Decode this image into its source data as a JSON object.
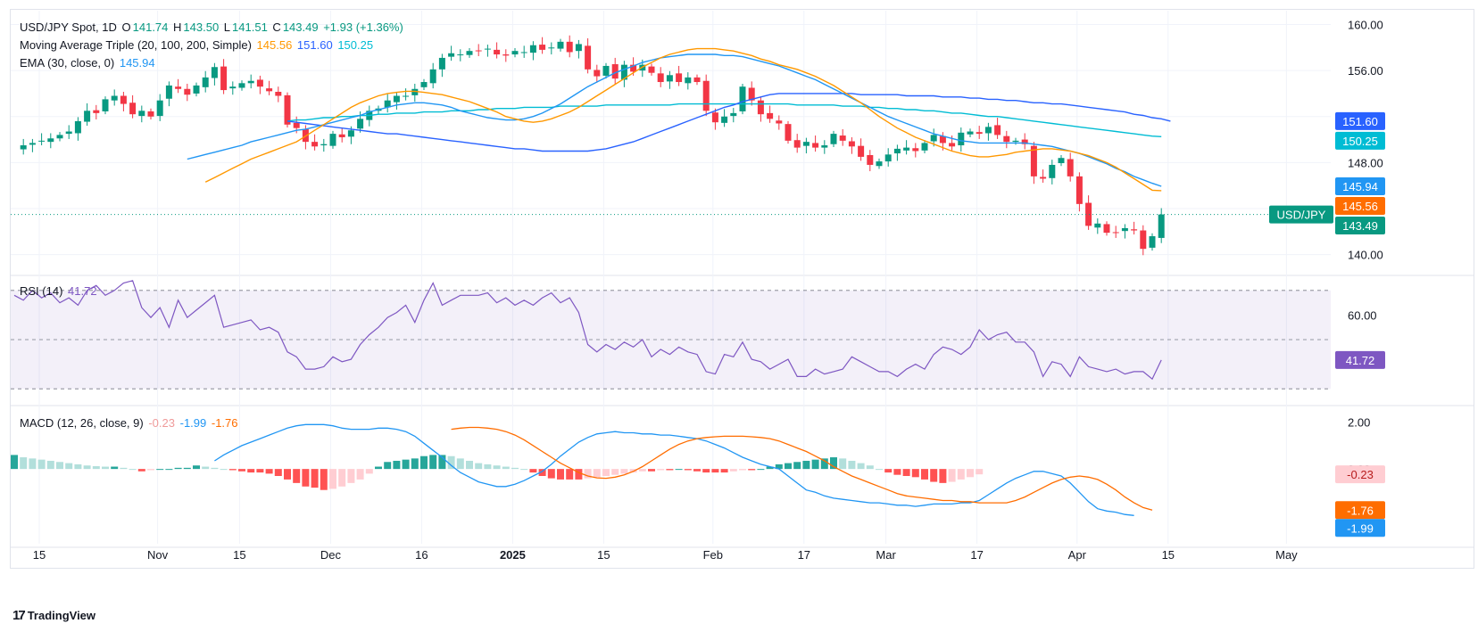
{
  "header": {
    "symbol": "USD/JPY Spot, 1D",
    "o_label": "O",
    "o": "141.74",
    "h_label": "H",
    "h": "143.50",
    "l_label": "L",
    "l": "141.51",
    "c_label": "C",
    "c": "143.49",
    "change": "+1.93 (+1.36%)"
  },
  "ma_legend": {
    "name": "Moving Average Triple (20, 100, 200, Simple)",
    "v20": "145.56",
    "v100": "151.60",
    "v200": "150.25"
  },
  "ema_legend": {
    "name": "EMA (30, close, 0)",
    "value": "145.94"
  },
  "rsi_legend": {
    "name": "RSI (14)",
    "value": "41.72"
  },
  "macd_legend": {
    "name": "MACD (12, 26, close, 9)",
    "hist": "-0.23",
    "macd": "-1.99",
    "signal": "-1.76"
  },
  "price_badges": [
    {
      "text": "151.60",
      "color": "#2962ff"
    },
    {
      "text": "150.25",
      "color": "#00bcd4"
    },
    {
      "text": "145.94",
      "color": "#2196f3"
    },
    {
      "text": "145.56",
      "color": "#ff6d00"
    },
    {
      "text": "143.49",
      "color": "#089981"
    }
  ],
  "symbol_badge": "USD/JPY",
  "rsi_badge": "41.72",
  "macd_badges": [
    {
      "text": "-0.23",
      "color": "#ffcdd2",
      "fg": "#b71c1c"
    },
    {
      "text": "-1.76",
      "color": "#ff6d00",
      "fg": "#ffffff"
    },
    {
      "text": "-1.99",
      "color": "#2196f3",
      "fg": "#ffffff"
    }
  ],
  "footer": {
    "brand": "TradingView"
  },
  "colors": {
    "up": "#089981",
    "down": "#f23645",
    "ma20": "#ff9800",
    "ma100": "#2962ff",
    "ma200": "#00bcd4",
    "ema": "#2196f3",
    "rsi": "#7e57c2",
    "macd": "#2196f3",
    "signal": "#ff6d00"
  },
  "chart_data": {
    "type": "candlestick",
    "price_axis": {
      "ticks": [
        "160.00",
        "156.00",
        "152.00",
        "148.00",
        "144.00",
        "140.00"
      ],
      "range": [
        138.5,
        161.2
      ]
    },
    "rsi_axis": {
      "ticks": [
        "60.00"
      ],
      "bands": [
        30,
        50,
        70
      ],
      "range": [
        25,
        75
      ]
    },
    "macd_axis": {
      "ticks": [
        "2.00",
        "0.00"
      ],
      "range": [
        -3.2,
        2.6
      ]
    },
    "x_labels": [
      {
        "text": "15",
        "i": 0
      },
      {
        "text": "Nov",
        "i": 13
      },
      {
        "text": "15",
        "i": 22
      },
      {
        "text": "Dec",
        "i": 32
      },
      {
        "text": "16",
        "i": 42
      },
      {
        "text": "2025",
        "i": 52,
        "bold": true
      },
      {
        "text": "15",
        "i": 62
      },
      {
        "text": "Feb",
        "i": 74
      },
      {
        "text": "17",
        "i": 84
      },
      {
        "text": "Mar",
        "i": 93
      },
      {
        "text": "17",
        "i": 103
      },
      {
        "text": "Apr",
        "i": 114
      },
      {
        "text": "15",
        "i": 124
      },
      {
        "text": "May",
        "i": 137
      }
    ],
    "closes": [
      149.2,
      149.5,
      149.7,
      149.9,
      150.1,
      150.4,
      150.7,
      151.6,
      152.5,
      152.3,
      153.5,
      153.8,
      153.1,
      152.2,
      152.5,
      152.0,
      153.4,
      154.7,
      154.4,
      153.9,
      154.7,
      155.4,
      156.3,
      154.3,
      154.6,
      154.9,
      155.1,
      154.6,
      154.2,
      153.8,
      151.3,
      151.0,
      149.8,
      149.4,
      149.6,
      150.5,
      150.2,
      150.8,
      151.8,
      152.5,
      152.7,
      153.4,
      153.8,
      153.8,
      154.4,
      155.0,
      156.1,
      157.1,
      157.5,
      157.4,
      157.7,
      157.7,
      157.9,
      157.4,
      157.3,
      157.7,
      157.6,
      158.2,
      157.8,
      158.0,
      158.5,
      157.6,
      158.3,
      156.1,
      155.5,
      156.4,
      155.3,
      156.5,
      155.9,
      156.5,
      155.8,
      155.0,
      155.6,
      155.0,
      155.4,
      155.0,
      152.5,
      151.5,
      152.0,
      152.3,
      154.6,
      153.4,
      152.2,
      151.8,
      151.4,
      149.9,
      149.3,
      149.8,
      149.3,
      149.5,
      150.5,
      149.9,
      149.4,
      148.5,
      147.8,
      148.1,
      148.7,
      149.2,
      149.3,
      149.0,
      149.7,
      150.4,
      149.7,
      149.4,
      150.6,
      150.7,
      150.5,
      151.1,
      150.4,
      149.8,
      149.9,
      149.6,
      146.8,
      146.6,
      147.8,
      148.4,
      146.8,
      144.4,
      142.5,
      142.7,
      141.9,
      141.9,
      142.3,
      142.1,
      140.5,
      141.6,
      143.49
    ],
    "ma20": [
      146.3,
      146.7,
      147.1,
      147.5,
      147.9,
      148.3,
      148.6,
      148.9,
      149.2,
      149.5,
      149.8,
      150.3,
      150.8,
      151.3,
      151.8,
      152.3,
      152.8,
      153.2,
      153.5,
      153.8,
      154.0,
      154.1,
      154.2,
      154.2,
      154.1,
      154.0,
      153.9,
      153.7,
      153.5,
      153.3,
      153.0,
      152.7,
      152.4,
      152.0,
      151.8,
      151.6,
      151.5,
      151.6,
      151.8,
      152.1,
      152.4,
      152.8,
      153.3,
      153.8,
      154.3,
      154.8,
      155.3,
      155.8,
      156.3,
      156.7,
      157.1,
      157.4,
      157.6,
      157.8,
      157.9,
      157.9,
      157.9,
      157.8,
      157.7,
      157.5,
      157.3,
      157.0,
      156.8,
      156.5,
      156.3,
      156.1,
      155.8,
      155.5,
      155.1,
      154.7,
      154.2,
      153.7,
      153.2,
      152.6,
      152.0,
      151.5,
      151.0,
      150.6,
      150.2,
      149.9,
      149.6,
      149.3,
      149.0,
      148.8,
      148.6,
      148.5,
      148.5,
      148.6,
      148.7,
      148.9,
      149.0,
      149.1,
      149.2,
      149.2,
      149.1,
      149.0,
      148.8,
      148.6,
      148.3,
      148.0,
      147.6,
      147.1,
      146.6,
      146.1,
      145.6,
      145.56
    ],
    "ma20_start": 21,
    "ema30": [
      148.3,
      148.5,
      148.7,
      148.9,
      149.1,
      149.3,
      149.5,
      149.8,
      150.0,
      150.2,
      150.4,
      150.6,
      150.8,
      150.9,
      151.1,
      151.3,
      151.5,
      151.7,
      151.9,
      152.1,
      152.4,
      152.6,
      152.8,
      153.0,
      153.1,
      153.2,
      153.2,
      153.1,
      153.0,
      152.8,
      152.5,
      152.3,
      152.1,
      151.9,
      151.8,
      151.7,
      151.7,
      151.8,
      152.0,
      152.3,
      152.7,
      153.1,
      153.6,
      154.1,
      154.6,
      155.0,
      155.4,
      155.8,
      156.1,
      156.4,
      156.7,
      156.9,
      157.1,
      157.2,
      157.3,
      157.4,
      157.4,
      157.4,
      157.4,
      157.3,
      157.3,
      157.2,
      157.0,
      156.8,
      156.6,
      156.4,
      156.1,
      155.8,
      155.5,
      155.2,
      154.8,
      154.4,
      154.0,
      153.6,
      153.2,
      152.8,
      152.4,
      152.0,
      151.7,
      151.4,
      151.1,
      150.8,
      150.5,
      150.3,
      150.1,
      149.9,
      149.8,
      149.7,
      149.7,
      149.7,
      149.7,
      149.7,
      149.7,
      149.6,
      149.5,
      149.4,
      149.2,
      149.0,
      148.8,
      148.5,
      148.2,
      147.9,
      147.5,
      147.2,
      146.8,
      146.5,
      146.2,
      145.94
    ],
    "ema30_start": 19,
    "ma100": [
      151.6,
      151.5,
      151.4,
      151.3,
      151.2,
      151.1,
      151.0,
      150.9,
      150.8,
      150.7,
      150.6,
      150.5,
      150.5,
      150.4,
      150.3,
      150.2,
      150.1,
      150.0,
      149.9,
      149.8,
      149.7,
      149.6,
      149.5,
      149.4,
      149.3,
      149.2,
      149.2,
      149.1,
      149.0,
      149.0,
      149.0,
      149.0,
      149.0,
      149.0,
      149.1,
      149.2,
      149.4,
      149.6,
      149.8,
      150.1,
      150.4,
      150.7,
      151.0,
      151.3,
      151.6,
      151.9,
      152.2,
      152.5,
      152.8,
      153.0,
      153.3,
      153.5,
      153.7,
      153.9,
      154.0,
      154.0,
      154.0,
      154.0,
      154.0,
      154.0,
      154.0,
      154.0,
      154.0,
      153.9,
      153.9,
      153.9,
      153.9,
      153.9,
      153.8,
      153.8,
      153.8,
      153.8,
      153.7,
      153.7,
      153.7,
      153.6,
      153.6,
      153.5,
      153.5,
      153.4,
      153.4,
      153.3,
      153.2,
      153.2,
      153.1,
      153.1,
      153.0,
      152.9,
      152.8,
      152.7,
      152.6,
      152.5,
      152.4,
      152.2,
      152.1,
      151.9,
      151.8,
      151.6
    ],
    "ma100_start": 30,
    "ma200": [
      151.6,
      151.7,
      151.7,
      151.8,
      151.9,
      151.9,
      152.0,
      152.0,
      152.1,
      152.1,
      152.2,
      152.2,
      152.3,
      152.3,
      152.3,
      152.4,
      152.4,
      152.4,
      152.5,
      152.5,
      152.5,
      152.6,
      152.6,
      152.7,
      152.7,
      152.7,
      152.8,
      152.8,
      152.8,
      152.8,
      152.9,
      152.9,
      152.9,
      152.9,
      152.9,
      153.0,
      153.0,
      153.0,
      153.0,
      153.0,
      153.0,
      153.0,
      153.0,
      153.1,
      153.1,
      153.1,
      153.1,
      153.1,
      153.1,
      153.1,
      153.1,
      153.1,
      153.1,
      153.1,
      153.1,
      153.1,
      153.0,
      153.0,
      153.0,
      153.0,
      153.0,
      152.9,
      152.9,
      152.9,
      152.8,
      152.8,
      152.7,
      152.7,
      152.6,
      152.6,
      152.5,
      152.5,
      152.4,
      152.3,
      152.3,
      152.2,
      152.1,
      152.0,
      152.0,
      151.9,
      151.8,
      151.7,
      151.6,
      151.5,
      151.4,
      151.3,
      151.2,
      151.1,
      151.0,
      150.9,
      150.8,
      150.7,
      150.6,
      150.5,
      150.4,
      150.3,
      150.25
    ],
    "ma200_start": 30,
    "rsi": [
      68,
      66,
      70,
      67,
      69,
      65,
      67,
      64,
      70,
      72,
      68,
      70,
      73,
      74,
      63,
      59,
      63,
      55,
      66,
      59,
      62,
      65,
      68,
      55,
      56,
      57,
      58,
      54,
      55,
      53,
      45,
      43,
      38,
      38,
      39,
      43,
      41,
      42,
      48,
      52,
      55,
      59,
      61,
      64,
      57,
      66,
      73,
      64,
      66,
      68,
      68,
      68,
      69,
      65,
      67,
      64,
      66,
      64,
      67,
      69,
      65,
      67,
      61,
      48,
      45,
      48,
      46,
      49,
      47,
      50,
      43,
      46,
      44,
      47,
      45,
      44,
      37,
      36,
      44,
      43,
      49,
      42,
      41,
      38,
      40,
      42,
      35,
      35,
      38,
      36,
      37,
      38,
      43,
      41,
      39,
      37,
      37,
      35,
      38,
      40,
      38,
      44,
      47,
      46,
      44,
      47,
      54,
      50,
      52,
      53,
      49,
      49,
      45,
      35,
      41,
      40,
      35,
      43,
      39,
      38,
      37,
      38,
      36,
      37,
      37,
      34,
      41.72
    ],
    "macd": [
      0.35,
      0.6,
      0.8,
      1.0,
      1.15,
      1.3,
      1.45,
      1.6,
      1.75,
      1.85,
      1.9,
      1.9,
      1.9,
      1.85,
      1.75,
      1.7,
      1.7,
      1.7,
      1.75,
      1.75,
      1.7,
      1.6,
      1.4,
      1.1,
      0.8,
      0.5,
      0.15,
      -0.15,
      -0.35,
      -0.55,
      -0.65,
      -0.75,
      -0.75,
      -0.65,
      -0.5,
      -0.3,
      -0.1,
      0.2,
      0.55,
      0.85,
      1.15,
      1.35,
      1.5,
      1.55,
      1.6,
      1.55,
      1.55,
      1.5,
      1.5,
      1.45,
      1.45,
      1.4,
      1.35,
      1.3,
      1.2,
      1.05,
      0.9,
      0.7,
      0.5,
      0.35,
      0.2,
      0.1,
      0.0,
      -0.3,
      -0.6,
      -0.9,
      -1.0,
      -1.15,
      -1.25,
      -1.3,
      -1.35,
      -1.4,
      -1.45,
      -1.45,
      -1.5,
      -1.55,
      -1.55,
      -1.6,
      -1.55,
      -1.5,
      -1.5,
      -1.5,
      -1.45,
      -1.45,
      -1.35,
      -1.1,
      -0.85,
      -0.6,
      -0.4,
      -0.25,
      -0.1,
      -0.1,
      -0.2,
      -0.3,
      -0.6,
      -1.0,
      -1.4,
      -1.7,
      -1.8,
      -1.85,
      -1.95,
      -1.99
    ],
    "macd_start": 22,
    "signal": [
      1.7,
      1.75,
      1.78,
      1.78,
      1.75,
      1.7,
      1.6,
      1.45,
      1.25,
      1.0,
      0.75,
      0.5,
      0.25,
      0.05,
      -0.15,
      -0.3,
      -0.38,
      -0.4,
      -0.35,
      -0.25,
      -0.1,
      0.1,
      0.35,
      0.6,
      0.85,
      1.05,
      1.2,
      1.3,
      1.35,
      1.38,
      1.4,
      1.4,
      1.4,
      1.38,
      1.35,
      1.3,
      1.2,
      1.05,
      0.9,
      0.75,
      0.55,
      0.35,
      0.1,
      -0.1,
      -0.3,
      -0.45,
      -0.6,
      -0.75,
      -0.9,
      -1.05,
      -1.15,
      -1.2,
      -1.25,
      -1.3,
      -1.35,
      -1.35,
      -1.4,
      -1.4,
      -1.45,
      -1.45,
      -1.45,
      -1.45,
      -1.35,
      -1.2,
      -1.0,
      -0.8,
      -0.6,
      -0.45,
      -0.35,
      -0.3,
      -0.35,
      -0.45,
      -0.65,
      -0.9,
      -1.2,
      -1.45,
      -1.65,
      -1.76
    ],
    "signal_start": 48,
    "hist": [
      0.6,
      0.5,
      0.45,
      0.4,
      0.35,
      0.3,
      0.25,
      0.2,
      0.15,
      0.12,
      0.1,
      0.1,
      0.05,
      0.0,
      -0.1,
      -0.05,
      0.0,
      0.0,
      0.05,
      0.05,
      0.15,
      0.1,
      0.05,
      0.0,
      -0.05,
      -0.1,
      -0.15,
      -0.15,
      -0.2,
      -0.3,
      -0.45,
      -0.6,
      -0.75,
      -0.8,
      -0.9,
      -0.85,
      -0.75,
      -0.6,
      -0.45,
      -0.2,
      0.1,
      0.3,
      0.35,
      0.4,
      0.45,
      0.55,
      0.6,
      0.6,
      0.55,
      0.45,
      0.35,
      0.25,
      0.2,
      0.15,
      0.1,
      0.05,
      0.0,
      -0.15,
      -0.3,
      -0.4,
      -0.45,
      -0.45,
      -0.45,
      -0.4,
      -0.35,
      -0.3,
      -0.25,
      -0.2,
      -0.15,
      -0.1,
      -0.1,
      -0.05,
      -0.05,
      0.0,
      -0.05,
      -0.1,
      -0.15,
      -0.15,
      -0.15,
      -0.1,
      -0.05,
      -0.05,
      0.0,
      0.1,
      0.2,
      0.25,
      0.3,
      0.35,
      0.4,
      0.45,
      0.5,
      0.45,
      0.35,
      0.25,
      0.15,
      0.0,
      -0.15,
      -0.25,
      -0.3,
      -0.35,
      -0.45,
      -0.55,
      -0.6,
      -0.55,
      -0.45,
      -0.35,
      -0.23
    ]
  }
}
